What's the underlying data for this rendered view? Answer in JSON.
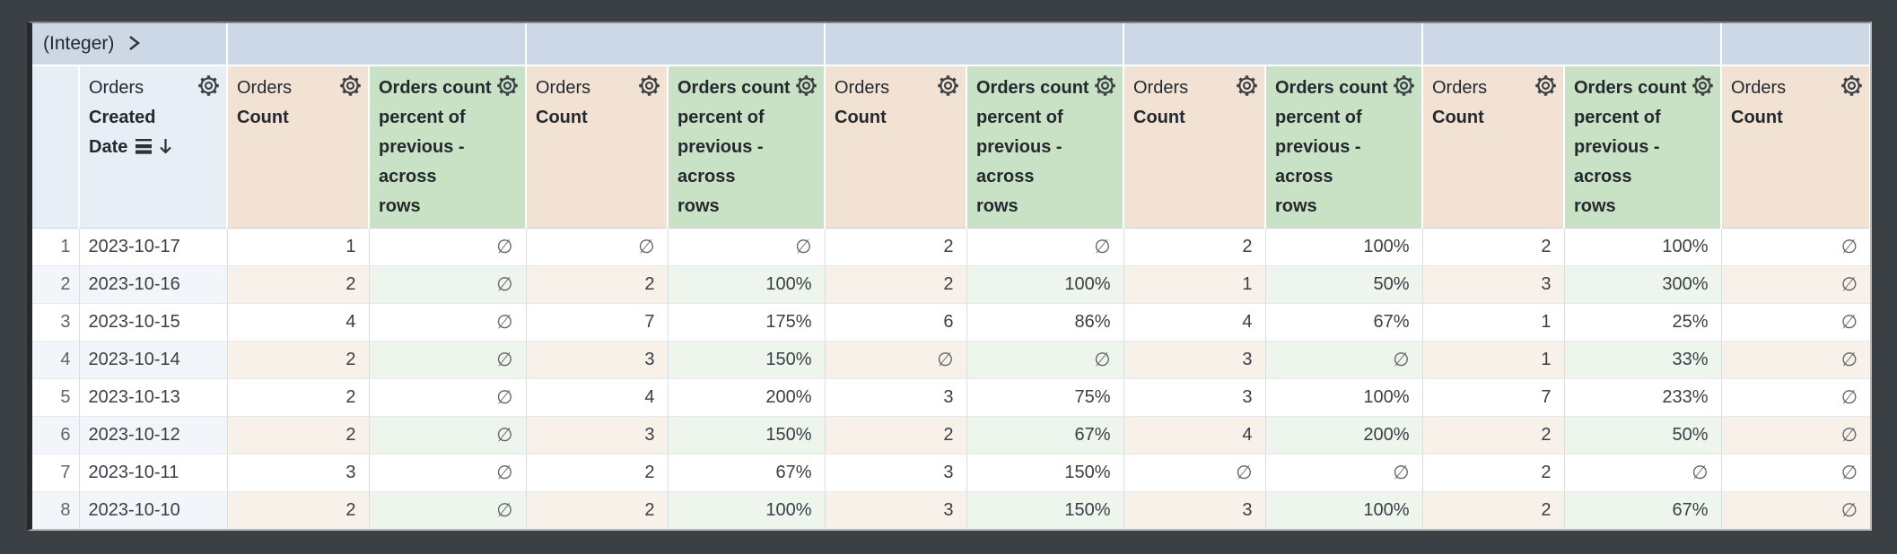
{
  "pivot_bar": {
    "label": "(Integer)",
    "chevron_icon": "chevron-right-icon"
  },
  "headers": {
    "dimension": {
      "view": "Orders",
      "field_line1": "Created",
      "field_line2": "Date",
      "full_label": "Orders Created Date",
      "sort_icon": "sort-rows-icon",
      "sort_direction_icon": "sort-descending-arrow-icon",
      "gear_icon": "gear-icon"
    },
    "measure": {
      "view": "Orders",
      "field": "Count",
      "full_label": "Orders Count",
      "gear_icon": "gear-icon"
    },
    "calc": {
      "full_label": "Orders count percent of previous - across rows",
      "lines": [
        "Orders count",
        "percent of",
        "previous -",
        "across",
        "rows"
      ],
      "gear_icon": "gear-icon"
    },
    "group_count": 5
  },
  "null_symbol": "∅",
  "rows": [
    {
      "n": "1",
      "date": "2023-10-17",
      "cells": [
        "1",
        "∅",
        "∅",
        "∅",
        "2",
        "∅",
        "2",
        "100%",
        "2",
        "100%",
        "∅"
      ]
    },
    {
      "n": "2",
      "date": "2023-10-16",
      "cells": [
        "2",
        "∅",
        "2",
        "100%",
        "2",
        "100%",
        "1",
        "50%",
        "3",
        "300%",
        "∅"
      ]
    },
    {
      "n": "3",
      "date": "2023-10-15",
      "cells": [
        "4",
        "∅",
        "7",
        "175%",
        "6",
        "86%",
        "4",
        "67%",
        "1",
        "25%",
        "∅"
      ]
    },
    {
      "n": "4",
      "date": "2023-10-14",
      "cells": [
        "2",
        "∅",
        "3",
        "150%",
        "∅",
        "∅",
        "3",
        "∅",
        "1",
        "33%",
        "∅"
      ]
    },
    {
      "n": "5",
      "date": "2023-10-13",
      "cells": [
        "2",
        "∅",
        "4",
        "200%",
        "3",
        "75%",
        "3",
        "100%",
        "7",
        "233%",
        "∅"
      ]
    },
    {
      "n": "6",
      "date": "2023-10-12",
      "cells": [
        "2",
        "∅",
        "3",
        "150%",
        "2",
        "67%",
        "4",
        "200%",
        "2",
        "50%",
        "∅"
      ]
    },
    {
      "n": "7",
      "date": "2023-10-11",
      "cells": [
        "3",
        "∅",
        "2",
        "67%",
        "3",
        "150%",
        "∅",
        "∅",
        "2",
        "∅",
        "∅"
      ]
    },
    {
      "n": "8",
      "date": "2023-10-10",
      "cells": [
        "2",
        "∅",
        "2",
        "100%",
        "3",
        "150%",
        "3",
        "100%",
        "2",
        "67%",
        "∅"
      ]
    }
  ],
  "colors": {
    "window_bg": "#3b4045",
    "pivot_band_bg": "#ccd8e5",
    "dimension_header_bg": "#e8eef6",
    "measure_header_bg": "#f2e2d3",
    "calc_header_bg": "#c9e2c5",
    "alt_row_dimension_bg": "#f2f6fa",
    "alt_row_measure_bg": "#f8f1ea",
    "alt_row_calc_bg": "#eef5ed",
    "grid_line": "#d9dce0",
    "header_text": "#23292f",
    "cell_text": "#3a3f45",
    "muted_text": "#5f6468"
  }
}
